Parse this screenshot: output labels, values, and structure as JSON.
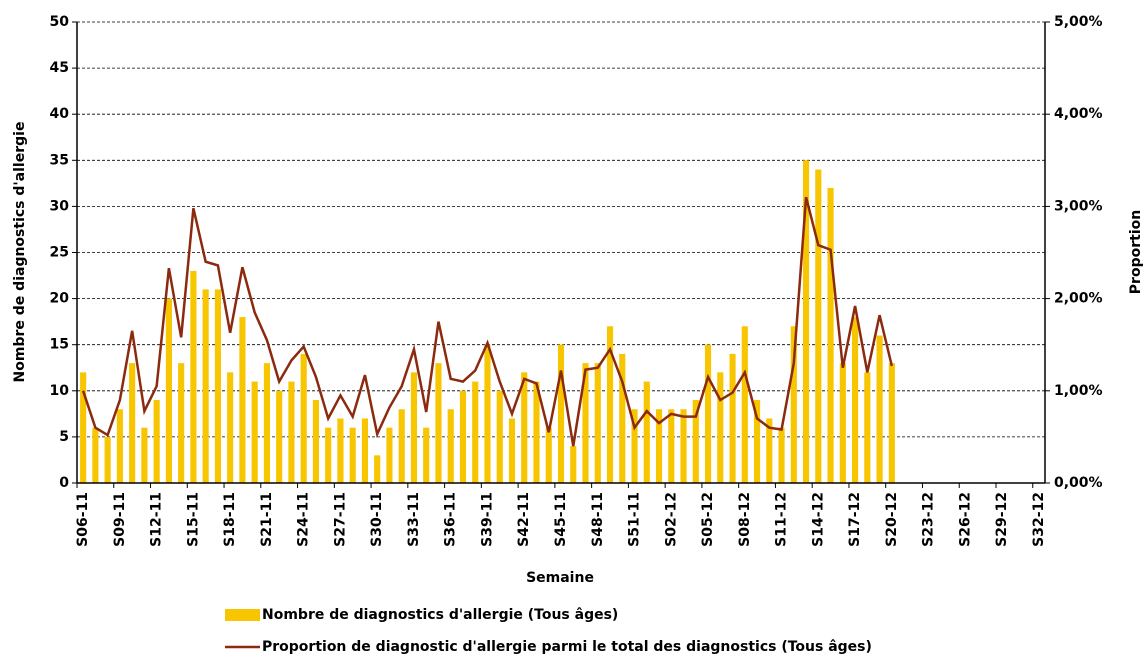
{
  "chart_data": {
    "type": "bar-line",
    "categories": [
      "S06-11",
      null,
      null,
      "S09-11",
      null,
      null,
      "S12-11",
      null,
      null,
      "S15-11",
      null,
      null,
      "S18-11",
      null,
      null,
      "S21-11",
      null,
      null,
      "S24-11",
      null,
      null,
      "S27-11",
      null,
      null,
      "S30-11",
      null,
      null,
      "S33-11",
      null,
      null,
      "S36-11",
      null,
      null,
      "S39-11",
      null,
      null,
      "S42-11",
      null,
      null,
      "S45-11",
      null,
      null,
      "S48-11",
      null,
      null,
      "S51-11",
      null,
      null,
      "S02-12",
      null,
      null,
      "S05-12",
      null,
      null,
      "S08-12",
      null,
      null,
      "S11-12",
      null,
      null,
      "S14-12",
      null,
      null,
      "S17-12",
      null,
      null,
      "S20-12",
      null,
      null,
      "S23-12",
      null,
      null,
      "S26-12",
      null,
      null,
      "S29-12",
      null,
      null,
      "S32-12"
    ],
    "x_label": "Semaine",
    "y_label": "Nombre de diagnostics d'allergie",
    "y2_label": "Proportion",
    "ylim": [
      0,
      50
    ],
    "yticks": [
      0,
      5,
      10,
      15,
      20,
      25,
      30,
      35,
      40,
      45,
      50
    ],
    "y2lim": [
      0,
      5
    ],
    "y2ticks": [
      {
        "value": 0,
        "label": "0,00%"
      },
      {
        "value": 1,
        "label": "1,00%"
      },
      {
        "value": 2,
        "label": "2,00%"
      },
      {
        "value": 3,
        "label": "3,00%"
      },
      {
        "value": 4,
        "label": "4,00%"
      },
      {
        "value": 5,
        "label": "5,00%"
      }
    ],
    "grid": true,
    "series": [
      {
        "name": "Nombre de diagnostics d'allergie (Tous âges)",
        "kind": "bar",
        "color": "#f7c600",
        "values": [
          12,
          6,
          5,
          8,
          13,
          6,
          9,
          20,
          13,
          23,
          21,
          21,
          12,
          18,
          11,
          13,
          10,
          11,
          14,
          9,
          6,
          7,
          6,
          7,
          3,
          6,
          8,
          12,
          6,
          13,
          8,
          10,
          11,
          15,
          10,
          7,
          12,
          11,
          6,
          15,
          4,
          13,
          13,
          17,
          14,
          8,
          11,
          8,
          8,
          8,
          9,
          15,
          12,
          14,
          17,
          9,
          7,
          6,
          17,
          35,
          34,
          32,
          13,
          18,
          12,
          16,
          13,
          null,
          null,
          null,
          null,
          null,
          null,
          null,
          null,
          null,
          null,
          null,
          null
        ]
      },
      {
        "name": "Proportion de diagnostic d'allergie parmi le total des diagnostics (Tous âges)",
        "kind": "line",
        "axis": "y2",
        "color": "#8b2a0e",
        "values": [
          1.0,
          0.6,
          0.52,
          0.9,
          1.65,
          0.78,
          1.05,
          2.33,
          1.58,
          2.98,
          2.4,
          2.36,
          1.63,
          2.34,
          1.85,
          1.55,
          1.1,
          1.33,
          1.48,
          1.15,
          0.7,
          0.95,
          0.72,
          1.17,
          0.53,
          0.82,
          1.05,
          1.45,
          0.77,
          1.75,
          1.13,
          1.1,
          1.22,
          1.52,
          1.1,
          0.75,
          1.13,
          1.08,
          0.55,
          1.22,
          0.4,
          1.23,
          1.25,
          1.45,
          1.1,
          0.6,
          0.78,
          0.65,
          0.75,
          0.72,
          0.72,
          1.15,
          0.9,
          0.98,
          1.2,
          0.7,
          0.6,
          0.58,
          1.3,
          3.1,
          2.58,
          2.53,
          1.25,
          1.92,
          1.2,
          1.82,
          1.27,
          null,
          null,
          null,
          null,
          null,
          null,
          null,
          null,
          null,
          null,
          null,
          null
        ]
      }
    ]
  }
}
